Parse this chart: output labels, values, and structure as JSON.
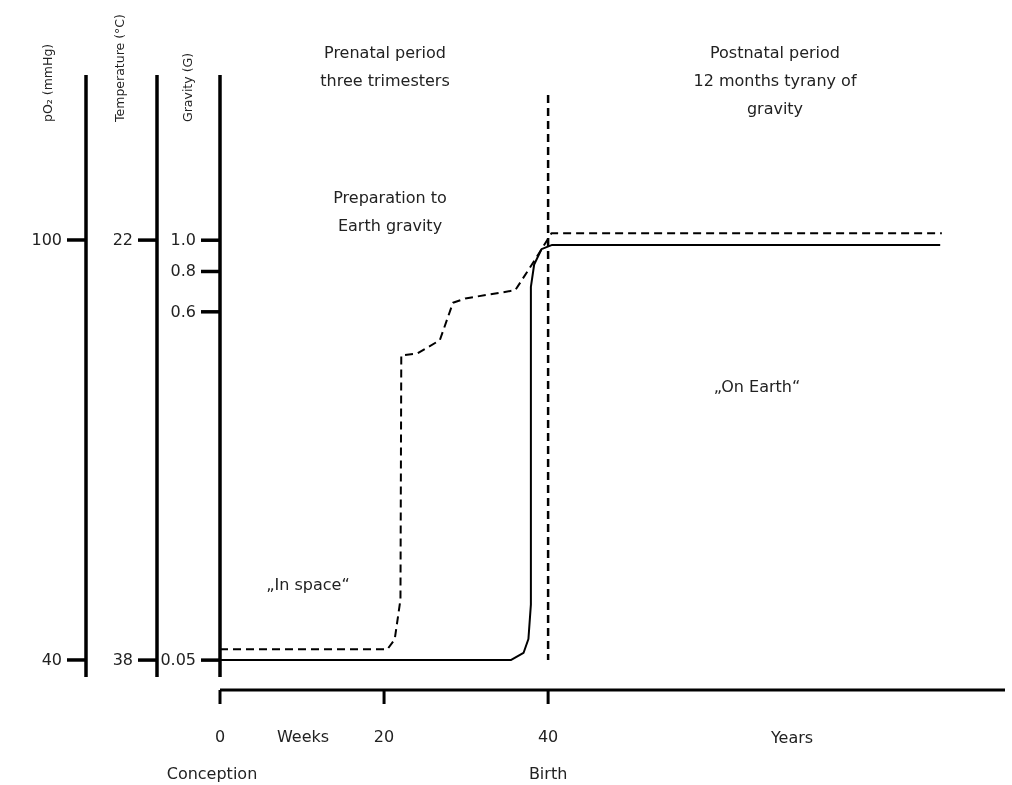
{
  "chart_data": {
    "type": "line",
    "xlabel": "Weeks",
    "ylabel": "pO₂ (mmHg)",
    "y2label": "Temperature (°C)",
    "y3label": "Gravity (G)",
    "xlim": [
      0,
      95.7
    ],
    "xticks": [
      0,
      20,
      40
    ],
    "ylim": [
      35.71,
      123.57
    ],
    "yticks": [
      40,
      100
    ],
    "y2lim": [
      39.14,
      15.71
    ],
    "y2ticks": [
      38,
      22
    ],
    "y3lim": [
      0.0404,
      3.25
    ],
    "y3ticks": [
      {
        "value": 0.05,
        "label": "0.05"
      },
      {
        "value": 0.6,
        "label": "0.6"
      },
      {
        "value": 0.8,
        "label": "0.8"
      },
      {
        "value": 1,
        "label": "1.0"
      }
    ],
    "log": "y3",
    "grid": false,
    "marker": "none",
    "series": [
      {
        "color": "#000000",
        "axis": "y",
        "line_style": "solid",
        "x": [
          0,
          35.5,
          37,
          37.6,
          37.9,
          37.9,
          38.3,
          39.2,
          40.5,
          87.8
        ],
        "values": [
          40,
          40,
          41,
          43,
          47.9,
          93.3,
          96.5,
          98.7,
          99.3,
          99.3
        ]
      },
      {
        "color": "#000000",
        "axis": "y3",
        "line_style": "dashed",
        "x": [
          0,
          20.4,
          21.3,
          22,
          22.1,
          24,
          26.8,
          28.4,
          29.9,
          36,
          38.4,
          40.4,
          88
        ],
        "values": [
          0.054,
          0.054,
          0.058,
          0.077,
          0.44,
          0.445,
          0.49,
          0.64,
          0.66,
          0.7,
          0.87,
          1.05,
          1.05
        ]
      }
    ],
    "ref_lines": [
      {
        "axis": "x",
        "value": 40,
        "label": "Birth",
        "line_style": "dashed",
        "color": "#000000"
      }
    ],
    "annotations": [
      "Prenatal period\nthree trimesters",
      "Postnatal period\n12 months tyrany of\ngravity",
      "Preparation to\nEarth gravity",
      "„In space“",
      "„On Earth“",
      "Conception",
      "Years"
    ]
  }
}
